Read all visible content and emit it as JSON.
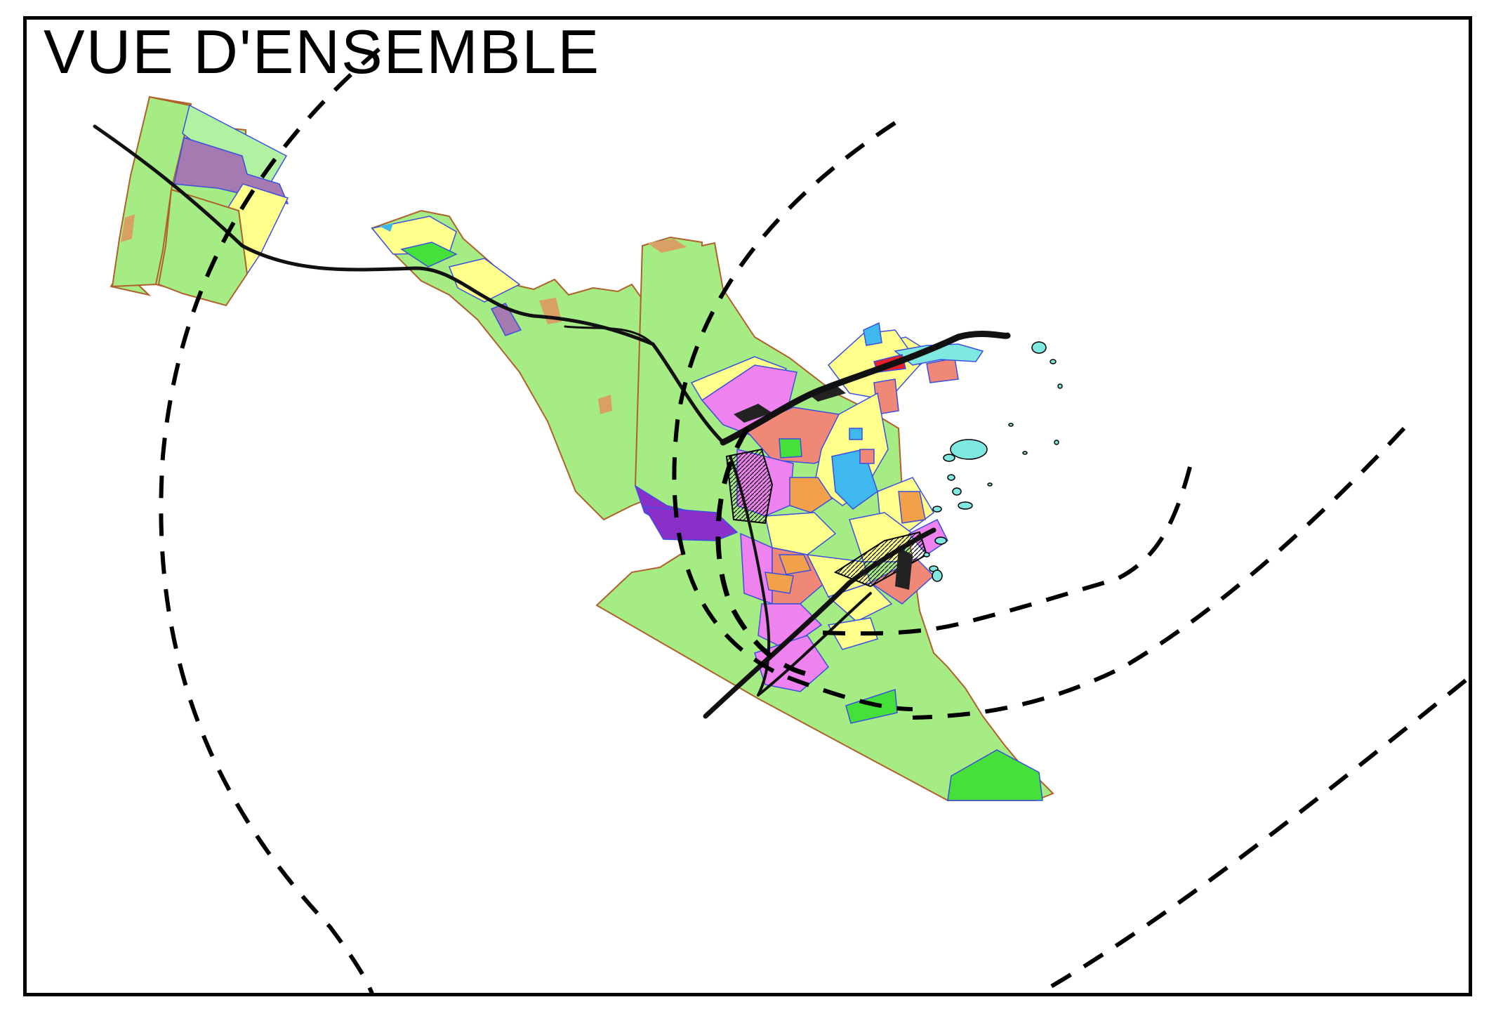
{
  "title": "VUE D'ENSEMBLE",
  "colors": {
    "frame": "#000000",
    "agricultural_green": "#a6ec84",
    "forest_green": "#45e03a",
    "residential_yellow": "#ffff8c",
    "commercial_pink": "#ee82ee",
    "industrial_salmon": "#f08878",
    "public_blue": "#3fb8f0",
    "purple_zone": "#8b2fc9",
    "mauve_zone": "#a57ab0",
    "orange_zone": "#f2a04a",
    "tan_zone": "#d9a066",
    "water_cyan": "#7fe8e0",
    "boundary_brown": "#b0602a",
    "road_black": "#111111",
    "contour_dash": "#000000"
  }
}
